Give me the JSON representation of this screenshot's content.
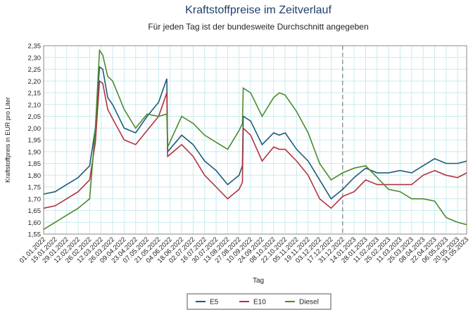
{
  "chart_data": {
    "type": "line",
    "title": "Kraftstoffpreise im Zeitverlauf",
    "subtitle": "Für jeden Tag ist der bundesweite Durchschnitt angegeben",
    "xlabel": "Tag",
    "ylabel": "Kraftstoffpreis in EUR pro Liter",
    "grid": true,
    "legend": "bottom",
    "vline": "2022-12-31",
    "x": [
      "2022-01-01",
      "2022-01-15",
      "2022-01-29",
      "2022-02-12",
      "2022-02-26",
      "2022-03-05",
      "2022-03-10",
      "2022-03-14",
      "2022-03-20",
      "2022-03-26",
      "2022-04-09",
      "2022-04-23",
      "2022-05-07",
      "2022-05-21",
      "2022-05-31",
      "2022-06-01",
      "2022-06-18",
      "2022-07-02",
      "2022-07-16",
      "2022-07-30",
      "2022-08-13",
      "2022-08-27",
      "2022-08-31",
      "2022-09-01",
      "2022-09-10",
      "2022-09-24",
      "2022-10-08",
      "2022-10-15",
      "2022-10-22",
      "2022-11-05",
      "2022-11-19",
      "2022-12-03",
      "2022-12-17",
      "2022-12-31",
      "2023-01-14",
      "2023-01-28",
      "2023-02-11",
      "2023-02-25",
      "2023-03-11",
      "2023-03-25",
      "2023-04-08",
      "2023-04-22",
      "2023-05-06",
      "2023-05-20",
      "2023-05-31"
    ],
    "series": [
      {
        "name": "E5",
        "color": "#1f5a7a",
        "values": [
          1.72,
          1.73,
          1.76,
          1.79,
          1.84,
          2.0,
          2.26,
          2.25,
          2.13,
          2.1,
          2.0,
          1.98,
          2.05,
          2.11,
          2.21,
          1.9,
          1.97,
          1.93,
          1.86,
          1.82,
          1.76,
          1.8,
          1.84,
          2.05,
          2.03,
          1.93,
          1.98,
          1.97,
          1.98,
          1.91,
          1.86,
          1.78,
          1.7,
          1.74,
          1.79,
          1.83,
          1.81,
          1.81,
          1.82,
          1.81,
          1.84,
          1.87,
          1.85,
          1.85,
          1.86
        ]
      },
      {
        "name": "E10",
        "color": "#b5303d",
        "values": [
          1.66,
          1.67,
          1.7,
          1.73,
          1.78,
          1.94,
          2.2,
          2.19,
          2.08,
          2.04,
          1.95,
          1.93,
          1.99,
          2.05,
          2.15,
          1.88,
          1.93,
          1.88,
          1.8,
          1.75,
          1.7,
          1.74,
          1.77,
          2.0,
          1.97,
          1.86,
          1.92,
          1.91,
          1.91,
          1.86,
          1.8,
          1.7,
          1.66,
          1.71,
          1.73,
          1.78,
          1.76,
          1.76,
          1.76,
          1.76,
          1.8,
          1.82,
          1.8,
          1.79,
          1.81
        ]
      },
      {
        "name": "Diesel",
        "color": "#4a8a2c",
        "values": [
          1.57,
          1.6,
          1.63,
          1.66,
          1.7,
          2.0,
          2.33,
          2.31,
          2.22,
          2.2,
          2.08,
          2.0,
          2.06,
          2.05,
          2.06,
          1.92,
          2.05,
          2.02,
          1.97,
          1.94,
          1.91,
          1.99,
          2.02,
          2.17,
          2.15,
          2.05,
          2.13,
          2.15,
          2.14,
          2.07,
          1.98,
          1.85,
          1.78,
          1.81,
          1.83,
          1.84,
          1.79,
          1.74,
          1.73,
          1.7,
          1.7,
          1.69,
          1.62,
          1.6,
          1.59
        ]
      }
    ],
    "ylim": [
      1.55,
      2.35
    ],
    "yticks": [
      {
        "value": 1.55,
        "label": "1,55"
      },
      {
        "value": 1.6,
        "label": "1,60"
      },
      {
        "value": 1.65,
        "label": "1,65"
      },
      {
        "value": 1.7,
        "label": "1,70"
      },
      {
        "value": 1.75,
        "label": "1,75"
      },
      {
        "value": 1.8,
        "label": "1,80"
      },
      {
        "value": 1.85,
        "label": "1,85"
      },
      {
        "value": 1.9,
        "label": "1,90"
      },
      {
        "value": 1.95,
        "label": "1,95"
      },
      {
        "value": 2.0,
        "label": "2,00"
      },
      {
        "value": 2.05,
        "label": "2,05"
      },
      {
        "value": 2.1,
        "label": "2,10"
      },
      {
        "value": 2.15,
        "label": "2,15"
      },
      {
        "value": 2.2,
        "label": "2,20"
      },
      {
        "value": 2.25,
        "label": "2,25"
      },
      {
        "value": 2.3,
        "label": "2,30"
      },
      {
        "value": 2.35,
        "label": "2,35"
      }
    ],
    "xlim": [
      "2022-01-01",
      "2023-05-31"
    ],
    "xticks": [
      {
        "value": "2022-01-01",
        "label": "01.01.2022"
      },
      {
        "value": "2022-01-15",
        "label": "15.01.2022"
      },
      {
        "value": "2022-01-29",
        "label": "29.01.2022"
      },
      {
        "value": "2022-02-12",
        "label": "12.02.2022"
      },
      {
        "value": "2022-02-26",
        "label": "26.02.2022"
      },
      {
        "value": "2022-03-12",
        "label": "12.03.2022"
      },
      {
        "value": "2022-03-26",
        "label": "26.03.2022"
      },
      {
        "value": "2022-04-09",
        "label": "09.04.2022"
      },
      {
        "value": "2022-04-23",
        "label": "23.04.2022"
      },
      {
        "value": "2022-05-07",
        "label": "07.05.2022"
      },
      {
        "value": "2022-05-21",
        "label": "21.05.2022"
      },
      {
        "value": "2022-06-04",
        "label": "04.06.2022"
      },
      {
        "value": "2022-06-18",
        "label": "18.06.2022"
      },
      {
        "value": "2022-07-02",
        "label": "02.07.2022"
      },
      {
        "value": "2022-07-16",
        "label": "16.07.2022"
      },
      {
        "value": "2022-07-30",
        "label": "30.07.2022"
      },
      {
        "value": "2022-08-13",
        "label": "13.08.2022"
      },
      {
        "value": "2022-08-27",
        "label": "27.08.2022"
      },
      {
        "value": "2022-09-10",
        "label": "10.09.2022"
      },
      {
        "value": "2022-09-24",
        "label": "24.09.2022"
      },
      {
        "value": "2022-10-08",
        "label": "08.10.2022"
      },
      {
        "value": "2022-10-22",
        "label": "22.10.2022"
      },
      {
        "value": "2022-11-05",
        "label": "05.11.2022"
      },
      {
        "value": "2022-11-19",
        "label": "19.11.2022"
      },
      {
        "value": "2022-12-03",
        "label": "03.12.2022"
      },
      {
        "value": "2022-12-17",
        "label": "17.12.2022"
      },
      {
        "value": "2022-12-31",
        "label": "31.12.2022"
      },
      {
        "value": "2023-01-14",
        "label": "14.01.2023"
      },
      {
        "value": "2023-01-28",
        "label": "28.01.2023"
      },
      {
        "value": "2023-02-11",
        "label": "11.02.2023"
      },
      {
        "value": "2023-02-25",
        "label": "25.02.2023"
      },
      {
        "value": "2023-03-11",
        "label": "11.03.2023"
      },
      {
        "value": "2023-03-25",
        "label": "25.03.2023"
      },
      {
        "value": "2023-04-08",
        "label": "08.04.2023"
      },
      {
        "value": "2023-04-22",
        "label": "22.04.2023"
      },
      {
        "value": "2023-05-06",
        "label": "06.05.2023"
      },
      {
        "value": "2023-05-20",
        "label": "20.05.2023"
      },
      {
        "value": "2023-05-31",
        "label": "31.05.2023"
      }
    ]
  }
}
